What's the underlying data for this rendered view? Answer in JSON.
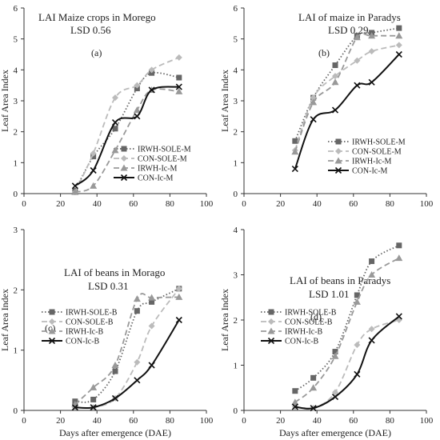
{
  "chart_data": [
    {
      "type": "line",
      "title": "LAI Maize crops in Morego",
      "subtitle": "LSD 0.56",
      "panel_label": "(a)",
      "xlabel": "",
      "ylabel": "Leaf Area Index",
      "xlim": [
        0,
        100
      ],
      "ylim": [
        0,
        6
      ],
      "xticks": [
        "0",
        "20",
        "40",
        "60",
        "80",
        "100"
      ],
      "yticks": [
        "0",
        "1",
        "2",
        "3",
        "4",
        "5",
        "6"
      ],
      "legend_position": "middle-right",
      "series": [
        {
          "name": "IRWH-SOLE-M",
          "style": "dotted",
          "marker": "square",
          "color": "#666666",
          "x": [
            28,
            38,
            50,
            62,
            70,
            85
          ],
          "y": [
            0.1,
            1.2,
            2.1,
            3.4,
            3.9,
            3.75
          ]
        },
        {
          "name": "CON-SOLE-M",
          "style": "dashed",
          "marker": "diamond",
          "color": "#bbbbbb",
          "x": [
            28,
            38,
            50,
            62,
            70,
            85
          ],
          "y": [
            0.05,
            1.3,
            3.1,
            3.5,
            4.0,
            4.4
          ]
        },
        {
          "name": "IRWH-Ic-M",
          "style": "dashed",
          "marker": "triangle",
          "color": "#999999",
          "x": [
            28,
            38,
            50,
            62,
            70,
            85
          ],
          "y": [
            0.05,
            0.25,
            1.4,
            2.7,
            3.35,
            3.3
          ]
        },
        {
          "name": "CON-Ic-M",
          "style": "solid",
          "marker": "x",
          "color": "#111111",
          "x": [
            28,
            38,
            50,
            62,
            70,
            85
          ],
          "y": [
            0.25,
            0.75,
            2.3,
            2.5,
            3.35,
            3.45
          ]
        }
      ]
    },
    {
      "type": "line",
      "title": "LAI of maize in Paradys",
      "subtitle": "LSD 0.29",
      "panel_label": "(b)",
      "xlabel": "",
      "ylabel": "Leaf Area Index",
      "xlim": [
        0,
        100
      ],
      "ylim": [
        0,
        6
      ],
      "xticks": [
        "0",
        "20",
        "40",
        "60",
        "80",
        "100"
      ],
      "yticks": [
        "0",
        "1",
        "2",
        "3",
        "4",
        "5",
        "6"
      ],
      "legend_position": "bottom-right",
      "series": [
        {
          "name": "IRWH-SOLE-M",
          "style": "dotted",
          "marker": "square",
          "color": "#666666",
          "x": [
            28,
            38,
            50,
            62,
            70,
            85
          ],
          "y": [
            1.7,
            3.1,
            4.15,
            5.1,
            5.2,
            5.35
          ]
        },
        {
          "name": "CON-SOLE-M",
          "style": "dashed",
          "marker": "diamond",
          "color": "#bbbbbb",
          "x": [
            28,
            38,
            50,
            62,
            70,
            85
          ],
          "y": [
            1.4,
            3.1,
            3.8,
            4.3,
            4.6,
            4.8
          ]
        },
        {
          "name": "IRWH-Ic-M",
          "style": "dashed",
          "marker": "triangle",
          "color": "#999999",
          "x": [
            28,
            38,
            50,
            62,
            70,
            85
          ],
          "y": [
            1.35,
            2.95,
            3.6,
            5.05,
            5.1,
            5.1
          ]
        },
        {
          "name": "CON-Ic-M",
          "style": "solid",
          "marker": "x",
          "color": "#111111",
          "x": [
            28,
            38,
            50,
            62,
            70,
            85
          ],
          "y": [
            0.8,
            2.4,
            2.7,
            3.5,
            3.6,
            4.5
          ]
        }
      ]
    },
    {
      "type": "line",
      "title": "LAI of beans in Morago",
      "subtitle": "LSD 0.31",
      "panel_label": "(c)",
      "xlabel": "Days after emergence (DAE)",
      "ylabel": "Leaf Area Index",
      "xlim": [
        0,
        100
      ],
      "ylim": [
        0,
        3
      ],
      "xticks": [
        "0",
        "20",
        "40",
        "60",
        "80",
        "100"
      ],
      "yticks": [
        "0",
        "1",
        "2",
        "3"
      ],
      "legend_position": "middle-left",
      "series": [
        {
          "name": "IRWH-SOLE-B",
          "style": "dotted",
          "marker": "square",
          "color": "#666666",
          "x": [
            28,
            38,
            50,
            62,
            70,
            85
          ],
          "y": [
            0.15,
            0.18,
            0.65,
            1.65,
            1.8,
            2.02
          ]
        },
        {
          "name": "CON-SOLE-B",
          "style": "dashed",
          "marker": "diamond",
          "color": "#bbbbbb",
          "x": [
            28,
            38,
            50,
            62,
            70,
            85
          ],
          "y": [
            0.05,
            0.05,
            0.2,
            0.8,
            1.4,
            2.02
          ]
        },
        {
          "name": "IRWH-Ic-B",
          "style": "dashed",
          "marker": "triangle",
          "color": "#999999",
          "x": [
            28,
            38,
            50,
            62,
            70,
            85
          ],
          "y": [
            0.1,
            0.38,
            0.75,
            1.85,
            1.87,
            1.88
          ]
        },
        {
          "name": "CON-Ic-B",
          "style": "solid",
          "marker": "x",
          "color": "#111111",
          "x": [
            28,
            38,
            50,
            62,
            70,
            85
          ],
          "y": [
            0.05,
            0.05,
            0.2,
            0.5,
            0.75,
            1.5
          ]
        }
      ]
    },
    {
      "type": "line",
      "title": "LAI of beans  in Paradys",
      "subtitle": "LSD 1.01",
      "panel_label": "(d)",
      "xlabel": "Days after emergence (DAE)",
      "ylabel": "Leaf Area Index",
      "xlim": [
        0,
        100
      ],
      "ylim": [
        0,
        4
      ],
      "xticks": [
        "0",
        "20",
        "40",
        "60",
        "80",
        "100"
      ],
      "yticks": [
        "0",
        "1",
        "2",
        "3",
        "4"
      ],
      "legend_position": "middle-left",
      "series": [
        {
          "name": "IRWH-SOLE-B",
          "style": "dotted",
          "marker": "square",
          "color": "#666666",
          "x": [
            28,
            38,
            50,
            62,
            70,
            85
          ],
          "y": [
            0.43,
            0.72,
            1.3,
            2.55,
            3.3,
            3.65
          ]
        },
        {
          "name": "CON-SOLE-B",
          "style": "dashed",
          "marker": "diamond",
          "color": "#bbbbbb",
          "x": [
            28,
            38,
            50,
            62,
            70,
            85
          ],
          "y": [
            0.08,
            0.05,
            0.4,
            1.45,
            1.8,
            2.0
          ]
        },
        {
          "name": "IRWH-Ic-B",
          "style": "dashed",
          "marker": "triangle",
          "color": "#999999",
          "x": [
            28,
            38,
            50,
            62,
            70,
            85
          ],
          "y": [
            0.18,
            0.5,
            1.2,
            2.4,
            3.0,
            3.37
          ]
        },
        {
          "name": "CON-Ic-B",
          "style": "solid",
          "marker": "x",
          "color": "#111111",
          "x": [
            28,
            38,
            50,
            62,
            70,
            85
          ],
          "y": [
            0.08,
            0.05,
            0.3,
            0.8,
            1.55,
            2.08
          ]
        }
      ]
    }
  ]
}
